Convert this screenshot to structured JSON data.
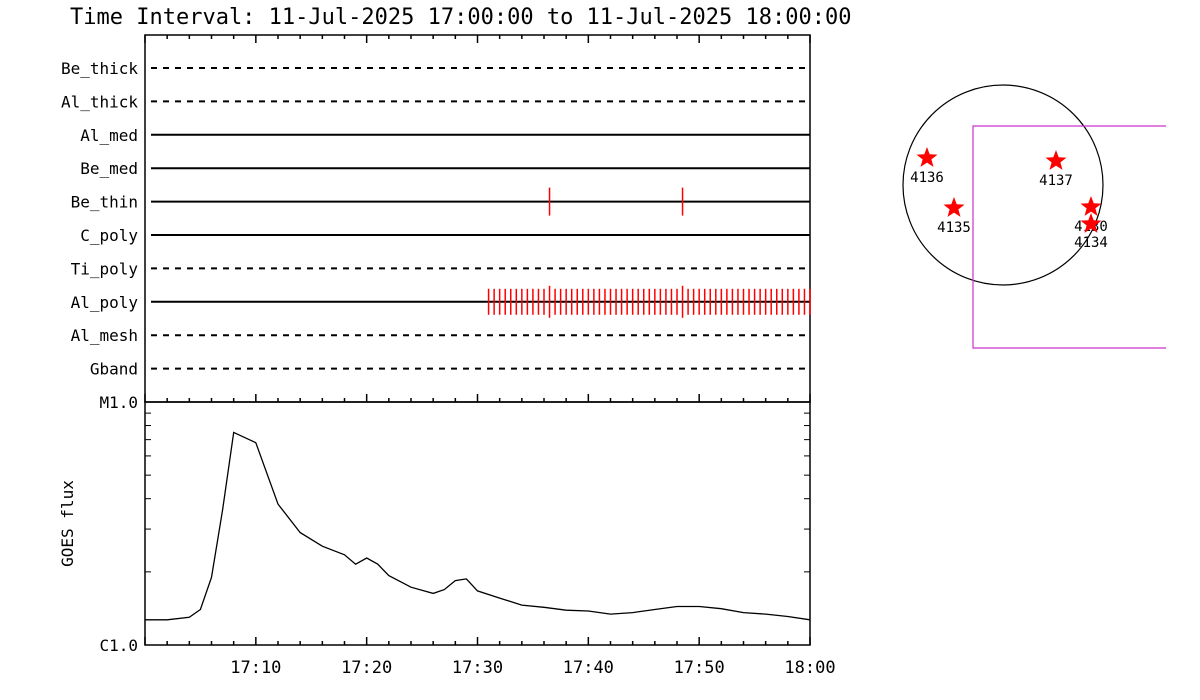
{
  "title": "Time Interval: 11-Jul-2025 17:00:00 to 11-Jul-2025 18:00:00",
  "chart_data": [
    {
      "type": "event-timeline",
      "x_range": [
        "17:00",
        "18:00"
      ],
      "x_tick_labels": [
        "17:10",
        "17:20",
        "17:30",
        "17:40",
        "17:50",
        "18:00"
      ],
      "rows": [
        {
          "name": "Be_thick",
          "style": "dashed",
          "events": []
        },
        {
          "name": "Al_thick",
          "style": "dashed",
          "events": []
        },
        {
          "name": "Al_med",
          "style": "solid",
          "events": []
        },
        {
          "name": "Be_med",
          "style": "solid",
          "events": []
        },
        {
          "name": "Be_thin",
          "style": "solid",
          "events": [
            36.5,
            48.5
          ]
        },
        {
          "name": "C_poly",
          "style": "solid",
          "events": []
        },
        {
          "name": "Ti_poly",
          "style": "dashed",
          "events": []
        },
        {
          "name": "Al_poly",
          "style": "solid",
          "events_range": {
            "start": 31.0,
            "end": 60.0,
            "step": 0.5,
            "marked": [
              36.5,
              48.5
            ]
          }
        },
        {
          "name": "Al_mesh",
          "style": "dashed",
          "events": []
        },
        {
          "name": "Gband",
          "style": "dashed",
          "events": []
        }
      ],
      "event_color": "#ff0000"
    },
    {
      "type": "line",
      "ylabel": "GOES flux",
      "y_scale": "log",
      "y_tick_labels": [
        "C1.0",
        "M1.0"
      ],
      "ylim": [
        1e-06,
        1e-05
      ],
      "x_range": [
        "17:00",
        "18:00"
      ],
      "x_tick_labels": [
        "17:10",
        "17:20",
        "17:30",
        "17:40",
        "17:50",
        "18:00"
      ],
      "x_minutes": [
        0,
        2,
        4,
        5,
        6,
        7,
        8,
        10,
        12,
        14,
        16,
        18,
        19,
        20,
        21,
        22,
        24,
        26,
        27,
        28,
        29,
        30,
        32,
        34,
        36,
        38,
        40,
        42,
        44,
        46,
        48,
        50,
        52,
        54,
        56,
        58,
        60
      ],
      "values": [
        1.27e-06,
        1.27e-06,
        1.3e-06,
        1.4e-06,
        1.9e-06,
        3.6e-06,
        7.5e-06,
        6.8e-06,
        3.8e-06,
        2.9e-06,
        2.55e-06,
        2.35e-06,
        2.15e-06,
        2.28e-06,
        2.15e-06,
        1.93e-06,
        1.73e-06,
        1.63e-06,
        1.69e-06,
        1.84e-06,
        1.87e-06,
        1.67e-06,
        1.56e-06,
        1.46e-06,
        1.43e-06,
        1.39e-06,
        1.38e-06,
        1.34e-06,
        1.36e-06,
        1.4e-06,
        1.44e-06,
        1.44e-06,
        1.41e-06,
        1.36e-06,
        1.34e-06,
        1.31e-06,
        1.27e-06
      ],
      "color": "#000000"
    }
  ],
  "sun_map": {
    "regions": [
      {
        "label": "4136"
      },
      {
        "label": "4137"
      },
      {
        "label": "4135"
      },
      {
        "label": "4130"
      },
      {
        "label": "4134"
      }
    ],
    "marker_color": "#ff0000",
    "fov_color": "#cc33cc"
  }
}
